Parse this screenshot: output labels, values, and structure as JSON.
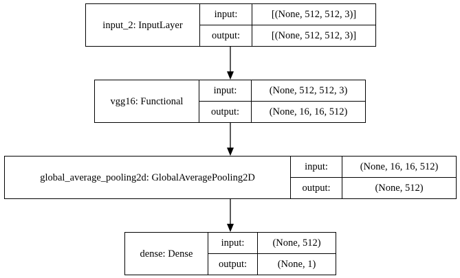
{
  "nodes": [
    {
      "name": "input_2: InputLayer",
      "input_label": "input:",
      "output_label": "output:",
      "input_shape": "[(None, 512, 512, 3)]",
      "output_shape": "[(None, 512, 512, 3)]"
    },
    {
      "name": "vgg16: Functional",
      "input_label": "input:",
      "output_label": "output:",
      "input_shape": "(None, 512, 512, 3)",
      "output_shape": "(None, 16, 16, 512)"
    },
    {
      "name": "global_average_pooling2d: GlobalAveragePooling2D",
      "input_label": "input:",
      "output_label": "output:",
      "input_shape": "(None, 16, 16, 512)",
      "output_shape": "(None, 512)"
    },
    {
      "name": "dense: Dense",
      "input_label": "input:",
      "output_label": "output:",
      "input_shape": "(None, 512)",
      "output_shape": "(None, 1)"
    }
  ]
}
